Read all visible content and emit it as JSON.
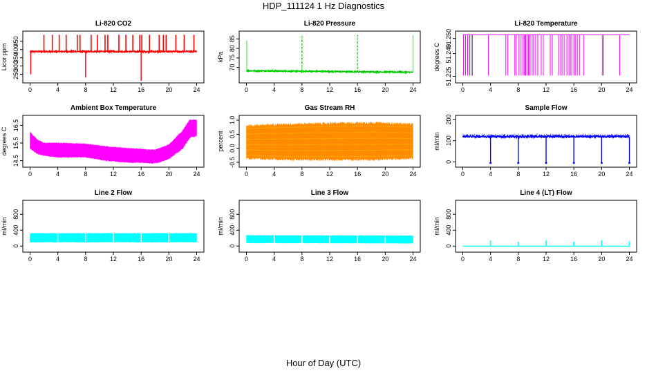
{
  "figure": {
    "title": "HDP_111124  1 Hz Diagnostics",
    "xlabel": "Hour of Day (UTC)"
  },
  "chart_data": [
    {
      "id": "co2",
      "type": "line",
      "title": "Li-820 CO2",
      "ylabel": "Licor ppm",
      "color": "#ff0000",
      "xlim": [
        0,
        24
      ],
      "ylim": [
        210,
        500
      ],
      "xticks": [
        0,
        4,
        8,
        12,
        16,
        20,
        24
      ],
      "yticks": [
        250,
        300,
        350,
        400,
        450
      ],
      "baseline": 388,
      "noise": 4,
      "spike_hours": [
        2,
        3.2,
        4.2,
        5.2,
        6.8,
        7.2,
        8.8,
        9.7,
        10.8,
        11.2,
        12.8,
        13.8,
        14.8,
        15.8,
        16.1,
        17.2,
        18.6,
        19.2,
        19.6,
        21,
        22.2,
        23.6
      ],
      "spike_value": 490,
      "dip_hours": [
        0.1,
        8,
        16
      ],
      "dip_values": [
        250,
        230,
        210
      ]
    },
    {
      "id": "pressure",
      "type": "line",
      "title": "Li-820 Pressure",
      "ylabel": "kPa",
      "color": "#00cc00",
      "xlim": [
        0,
        24
      ],
      "ylim": [
        63,
        88
      ],
      "xticks": [
        0,
        4,
        8,
        12,
        16,
        20,
        24
      ],
      "yticks": [
        70,
        75,
        80,
        85
      ],
      "baseline_start": 68.3,
      "baseline_end": 67.5,
      "noise": 0.3,
      "spike_hours": [
        0.05,
        8,
        16,
        24
      ],
      "spike_values": [
        84,
        87,
        87,
        87
      ]
    },
    {
      "id": "lc_temp",
      "type": "line",
      "title": "Li-820 Temperature",
      "ylabel": "degrees C",
      "color": "#ff00ff",
      "xlim": [
        0,
        24
      ],
      "ylim": [
        51.222,
        51.2535
      ],
      "xticks": [
        0,
        4,
        8,
        12,
        16,
        20,
        24
      ],
      "yticks": [
        51.225,
        51.24,
        51.25
      ],
      "ytick_labels": [
        "51.225",
        "51.240",
        "51.250"
      ],
      "high": 51.2525,
      "low": 51.2255,
      "drop_hours": [
        0.1,
        0.4,
        0.7,
        1.0,
        1.2,
        1.4,
        3.7,
        6.2,
        6.5,
        7.5,
        7.7,
        8.1,
        8.4,
        8.7,
        8.9,
        9.0,
        9.1,
        9.4,
        9.5,
        9.7,
        10.0,
        10.2,
        10.5,
        10.8,
        11.3,
        11.6,
        12.6,
        12.9,
        13.8,
        14.1,
        14.3,
        14.6,
        15.0,
        15.3,
        15.5,
        15.7,
        16.0,
        16.2,
        16.5,
        16.8,
        17.4,
        20.1,
        20.3,
        22.6
      ]
    },
    {
      "id": "box_temp",
      "type": "band",
      "title": "Ambient Box Temperature",
      "ylabel": "degrees C",
      "color": "#ff00ff",
      "xlim": [
        0,
        24
      ],
      "ylim": [
        14.25,
        16.95
      ],
      "xticks": [
        0,
        4,
        8,
        12,
        16,
        20,
        24
      ],
      "yticks": [
        14.5,
        15.5,
        16.5
      ],
      "ytick_labels": [
        "14.5",
        "15.5",
        "16.5"
      ],
      "upper": [
        [
          0,
          16.1
        ],
        [
          1,
          15.7
        ],
        [
          2,
          15.5
        ],
        [
          4,
          15.5
        ],
        [
          8,
          15.45
        ],
        [
          11,
          15.3
        ],
        [
          14,
          15.2
        ],
        [
          18,
          15.1
        ],
        [
          20,
          15.4
        ],
        [
          22,
          16.2
        ],
        [
          23,
          16.8
        ],
        [
          24,
          16.8
        ]
      ],
      "lower": [
        [
          0,
          15.2
        ],
        [
          1,
          14.9
        ],
        [
          2,
          14.8
        ],
        [
          4,
          14.7
        ],
        [
          8,
          14.7
        ],
        [
          11,
          14.5
        ],
        [
          14,
          14.4
        ],
        [
          16,
          14.4
        ],
        [
          17.5,
          14.35
        ],
        [
          18.5,
          14.4
        ],
        [
          20,
          14.6
        ],
        [
          22,
          15.2
        ],
        [
          23,
          15.8
        ],
        [
          24,
          15.9
        ]
      ]
    },
    {
      "id": "rh",
      "type": "band",
      "title": "Gas Stream RH",
      "ylabel": "percent",
      "color": "#ff8c00",
      "color2": "#ffd700",
      "xlim": [
        0,
        24
      ],
      "ylim": [
        -0.6,
        1.1
      ],
      "xticks": [
        0,
        4,
        8,
        12,
        16,
        20,
        24
      ],
      "yticks": [
        -0.5,
        0,
        0.5,
        1
      ],
      "ytick_labels": [
        "-0.5",
        "0.0",
        "0.5",
        "1.0"
      ],
      "upper": [
        [
          0,
          0.8
        ],
        [
          6,
          0.85
        ],
        [
          12,
          0.88
        ],
        [
          18,
          0.9
        ],
        [
          24,
          0.85
        ]
      ],
      "lower": [
        [
          0,
          -0.35
        ],
        [
          6,
          -0.4
        ],
        [
          12,
          -0.4
        ],
        [
          18,
          -0.4
        ],
        [
          24,
          -0.35
        ]
      ]
    },
    {
      "id": "sample_flow",
      "type": "line",
      "title": "Sample Flow",
      "ylabel": "ml/min",
      "color": "#0000ff",
      "xlim": [
        0,
        24
      ],
      "ylim": [
        -15,
        210
      ],
      "xticks": [
        0,
        4,
        8,
        12,
        16,
        20,
        24
      ],
      "yticks": [
        0,
        100,
        200
      ],
      "baseline": 120,
      "band_top": 128,
      "noise": 5,
      "dip_hours": [
        4,
        8,
        12,
        16,
        20,
        24
      ],
      "dip_value": -5
    },
    {
      "id": "line2",
      "type": "band",
      "title": "Line 2 Flow",
      "ylabel": "ml/min",
      "color": "#00ffff",
      "xlim": [
        0,
        24
      ],
      "ylim": [
        -100,
        1100
      ],
      "xticks": [
        0,
        4,
        8,
        12,
        16,
        20,
        24
      ],
      "yticks": [
        0,
        400,
        800
      ],
      "upper": [
        [
          0,
          320
        ],
        [
          24,
          320
        ]
      ],
      "lower": [
        [
          0,
          100
        ],
        [
          24,
          100
        ]
      ],
      "gap_hours": [
        4,
        8,
        12,
        16,
        20
      ]
    },
    {
      "id": "line3",
      "type": "band",
      "title": "Line 3 Flow",
      "ylabel": "ml/min",
      "color": "#00ffff",
      "xlim": [
        0,
        24
      ],
      "ylim": [
        -100,
        1100
      ],
      "xticks": [
        0,
        4,
        8,
        12,
        16,
        20,
        24
      ],
      "yticks": [
        0,
        400,
        800
      ],
      "upper": [
        [
          0,
          270
        ],
        [
          24,
          260
        ]
      ],
      "lower": [
        [
          0,
          80
        ],
        [
          24,
          70
        ]
      ],
      "gap_hours": [
        4,
        8,
        12,
        16,
        20
      ]
    },
    {
      "id": "line4",
      "type": "line",
      "title": "Line 4 (LT) Flow",
      "ylabel": "ml/min",
      "color": "#00ffff",
      "xlim": [
        0,
        24
      ],
      "ylim": [
        -100,
        1100
      ],
      "xticks": [
        0,
        4,
        8,
        12,
        16,
        20,
        24
      ],
      "yticks": [
        0,
        400,
        800
      ],
      "baseline": 0,
      "noise": 0,
      "spike_hours": [
        4,
        8,
        12,
        16,
        20,
        24
      ],
      "spike_values": [
        140,
        110,
        150,
        110,
        150,
        120
      ]
    }
  ]
}
